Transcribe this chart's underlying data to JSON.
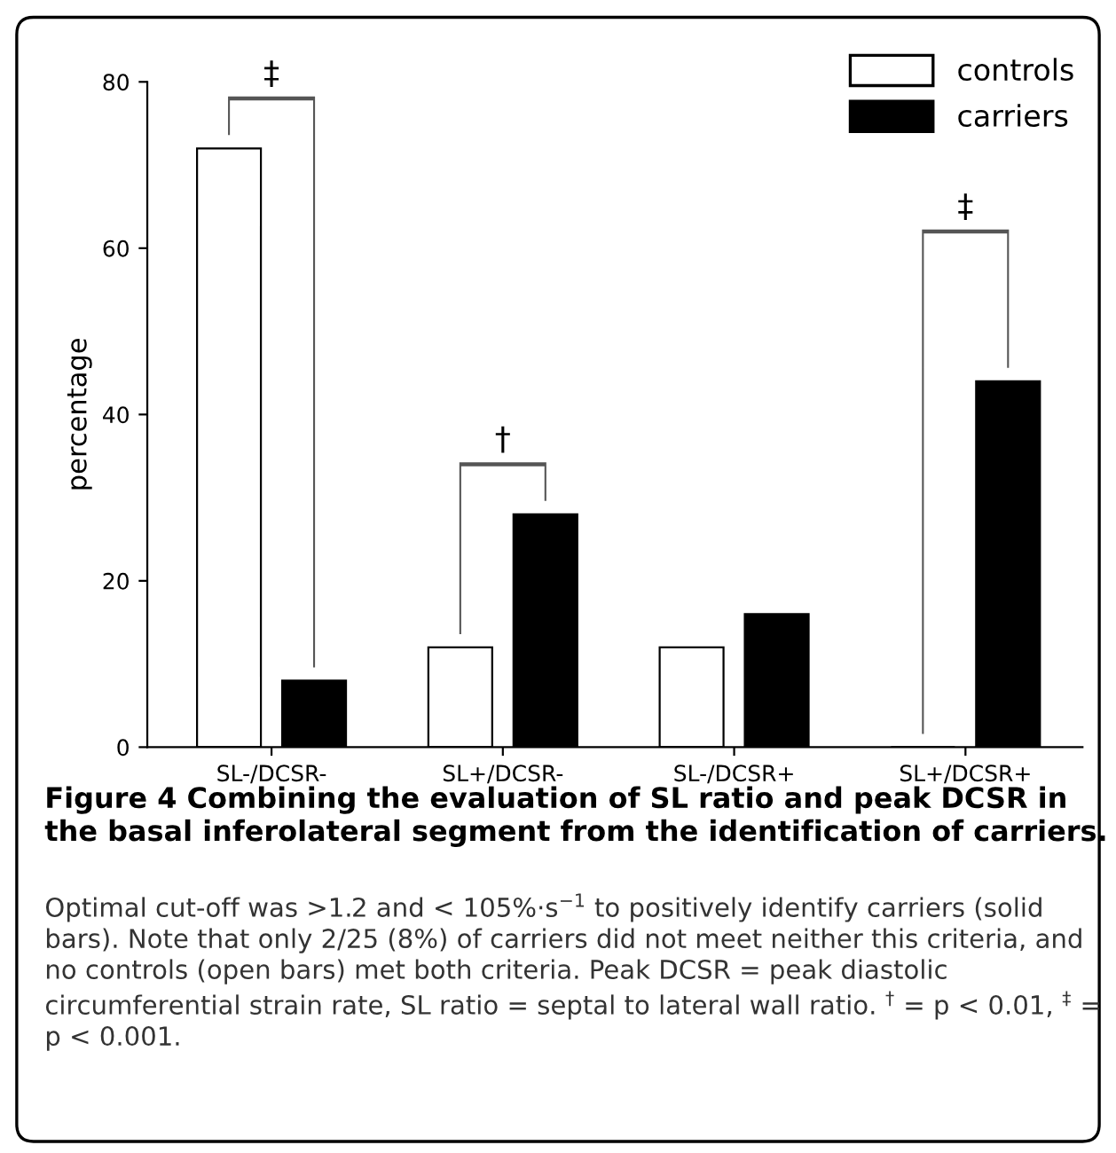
{
  "chart_data": {
    "type": "bar",
    "title": "Figure 4 Combining the evaluation of SL ratio and peak DCSR in the basal inferolateral segment from the identification of carriers.",
    "ylabel": "percentage",
    "categories": [
      "SL-/DCSR-",
      "SL+/DCSR-",
      "SL-/DCSR+",
      "SL+/DCSR+"
    ],
    "series": [
      {
        "name": "controls",
        "color": "#ffffff",
        "values": [
          72,
          12,
          12,
          0
        ]
      },
      {
        "name": "carriers",
        "color": "#000000",
        "values": [
          8,
          28,
          16,
          44
        ]
      }
    ],
    "ylim": [
      0,
      80
    ],
    "yticks": [
      0,
      20,
      40,
      60,
      80
    ],
    "grid": false,
    "legend": "top right",
    "annotations": [
      "‡",
      "†",
      "‡",
      "Optimal cut-off was >1.2 and < 105%·s$^{−1}$ to positively identify carriers (solid bars). Note that only 2/25 (8%) of carriers did not meet neither this criteria, and no controls (open bars) met both criteria. Peak DCSR = peak diastolic circumferential strain rate, SL ratio = septal to lateral wall ratio. $^{†}$ = p < 0.01, $^{‡}$ = p < 0.001."
    ]
  }
}
